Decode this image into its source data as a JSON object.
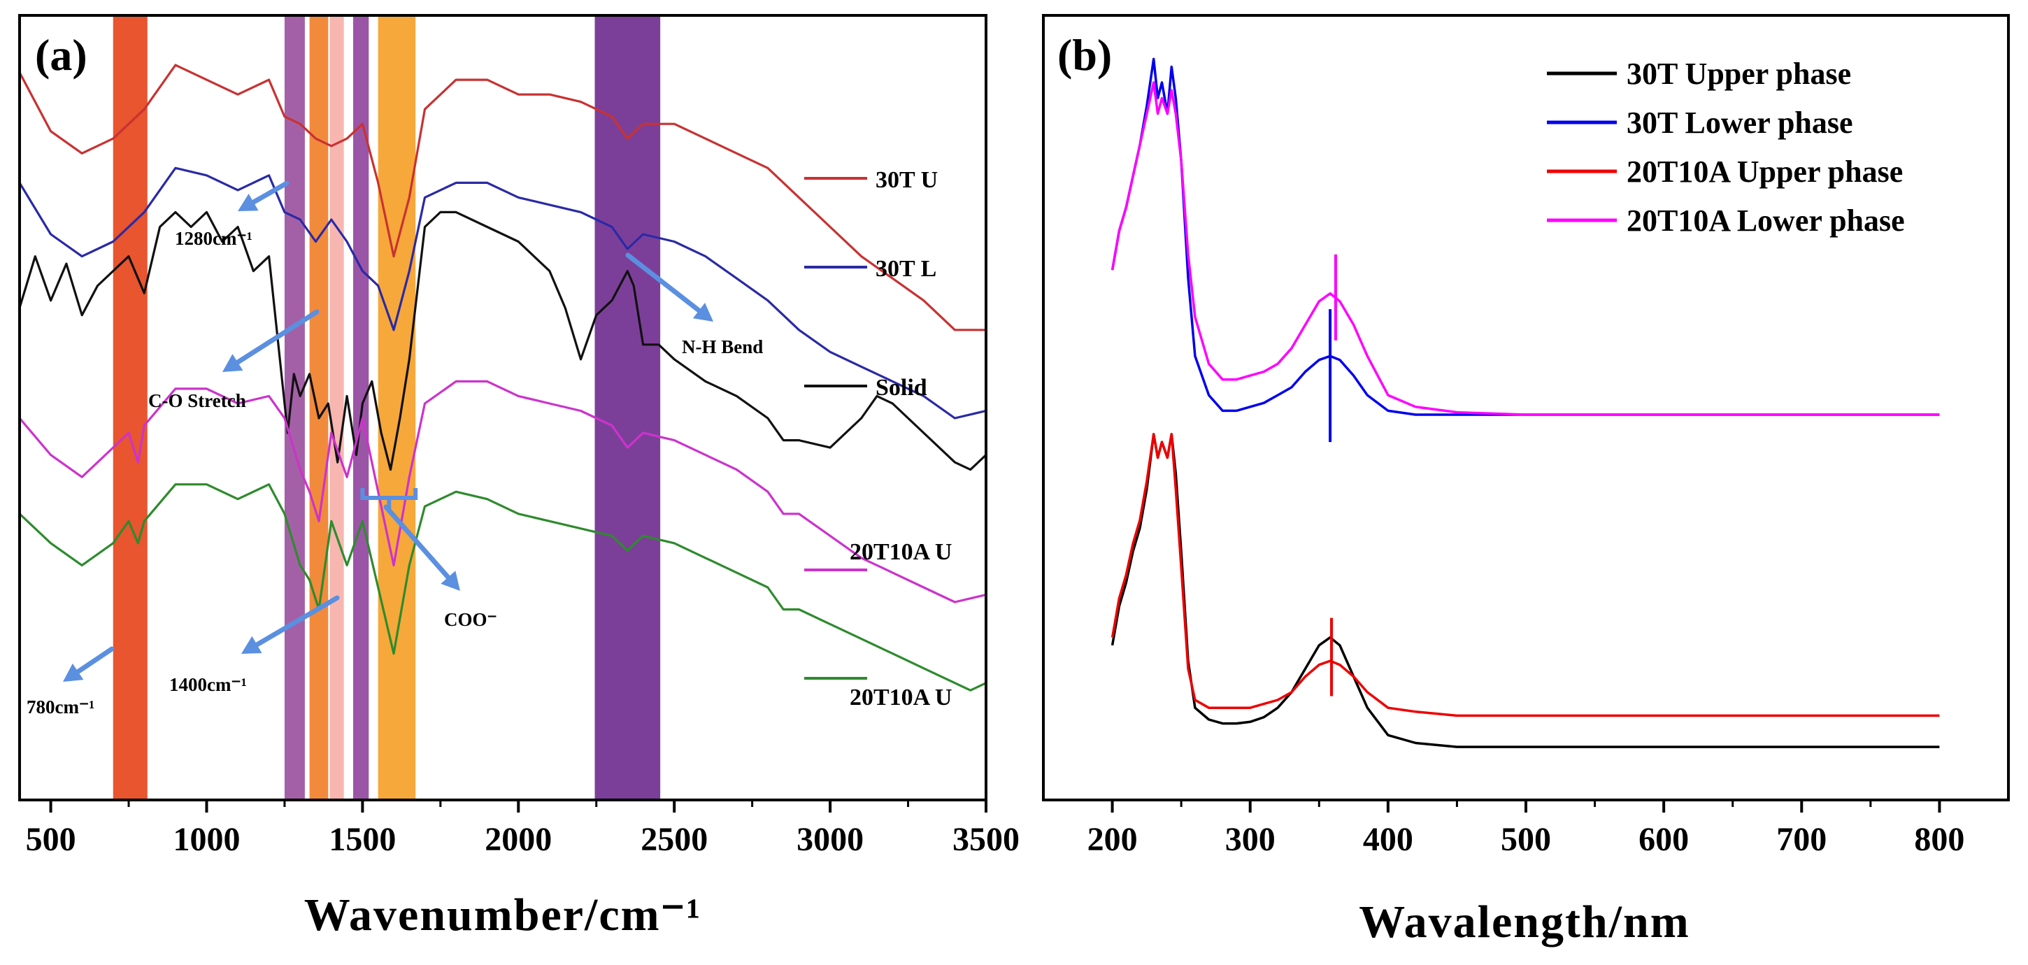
{
  "chart_data": [
    {
      "type": "line",
      "panel": "(a)",
      "xlabel": "Wavenumber/cm⁻¹",
      "ylabel": "",
      "xlim": [
        400,
        3500
      ],
      "x_ticks": [
        500,
        1000,
        1500,
        2000,
        2500,
        3000,
        3500
      ],
      "x_tick_labels": [
        "500",
        "1000",
        "1500",
        "2000",
        "2500",
        "3000",
        "3500"
      ],
      "y_ticks_shown": false,
      "bands": [
        {
          "from": 700,
          "to": 810,
          "color": "#e8552e"
        },
        {
          "from": 1250,
          "to": 1315,
          "color": "#a460a6"
        },
        {
          "from": 1330,
          "to": 1390,
          "color": "#f28a3c"
        },
        {
          "from": 1395,
          "to": 1440,
          "color": "#f7b6b0"
        },
        {
          "from": 1470,
          "to": 1520,
          "color": "#9b55a6"
        },
        {
          "from": 1550,
          "to": 1670,
          "color": "#f7a83a"
        },
        {
          "from": 2245,
          "to": 2455,
          "color": "#7c3f99"
        }
      ],
      "annotations": [
        {
          "text": "1280cm⁻¹"
        },
        {
          "text": "C-O Stretch"
        },
        {
          "text": "N-H Bend"
        },
        {
          "text": "COO⁻"
        },
        {
          "text": "780cm⁻¹"
        },
        {
          "text": "1400cm⁻¹"
        }
      ],
      "series": [
        {
          "name": "30T U",
          "color": "#c83232",
          "offset": 0.0,
          "x": [
            400,
            500,
            600,
            700,
            800,
            900,
            1000,
            1100,
            1200,
            1250,
            1300,
            1350,
            1400,
            1450,
            1500,
            1550,
            1600,
            1650,
            1700,
            1800,
            1900,
            2000,
            2100,
            2200,
            2300,
            2350,
            2400,
            2500,
            2600,
            2700,
            2800,
            2900,
            3000,
            3100,
            3200,
            3300,
            3400,
            3500
          ],
          "y": [
            0.97,
            0.89,
            0.86,
            0.88,
            0.92,
            0.98,
            0.96,
            0.94,
            0.96,
            0.91,
            0.9,
            0.88,
            0.87,
            0.88,
            0.9,
            0.82,
            0.72,
            0.8,
            0.92,
            0.96,
            0.96,
            0.94,
            0.94,
            0.93,
            0.91,
            0.88,
            0.9,
            0.9,
            0.88,
            0.86,
            0.84,
            0.8,
            0.76,
            0.72,
            0.69,
            0.66,
            0.62,
            0.62
          ]
        },
        {
          "name": "30T L",
          "color": "#2a2aa6",
          "offset": 0.0,
          "x": [
            400,
            500,
            600,
            700,
            800,
            900,
            1000,
            1100,
            1200,
            1250,
            1300,
            1350,
            1400,
            1450,
            1500,
            1550,
            1600,
            1650,
            1700,
            1800,
            1900,
            2000,
            2100,
            2200,
            2300,
            2350,
            2400,
            2500,
            2600,
            2700,
            2800,
            2900,
            3000,
            3100,
            3200,
            3300,
            3400,
            3500
          ],
          "y": [
            0.82,
            0.75,
            0.72,
            0.74,
            0.78,
            0.84,
            0.83,
            0.81,
            0.83,
            0.78,
            0.77,
            0.74,
            0.77,
            0.74,
            0.7,
            0.68,
            0.62,
            0.7,
            0.8,
            0.82,
            0.82,
            0.8,
            0.79,
            0.78,
            0.76,
            0.73,
            0.75,
            0.74,
            0.72,
            0.69,
            0.66,
            0.62,
            0.59,
            0.57,
            0.55,
            0.53,
            0.5,
            0.51
          ]
        },
        {
          "name": "Solid",
          "color": "#111111",
          "offset": 0.0,
          "x": [
            400,
            450,
            500,
            550,
            600,
            650,
            700,
            750,
            800,
            850,
            900,
            950,
            1000,
            1050,
            1100,
            1150,
            1200,
            1230,
            1260,
            1280,
            1300,
            1330,
            1360,
            1390,
            1420,
            1450,
            1480,
            1500,
            1530,
            1560,
            1590,
            1620,
            1650,
            1700,
            1750,
            1800,
            1900,
            2000,
            2100,
            2150,
            2200,
            2250,
            2300,
            2350,
            2370,
            2400,
            2450,
            2500,
            2600,
            2700,
            2800,
            2850,
            2900,
            3000,
            3100,
            3150,
            3200,
            3300,
            3400,
            3450,
            3500
          ],
          "y": [
            0.65,
            0.72,
            0.66,
            0.71,
            0.64,
            0.68,
            0.7,
            0.72,
            0.67,
            0.76,
            0.78,
            0.76,
            0.78,
            0.74,
            0.76,
            0.7,
            0.72,
            0.6,
            0.48,
            0.56,
            0.53,
            0.56,
            0.5,
            0.52,
            0.44,
            0.53,
            0.45,
            0.52,
            0.55,
            0.48,
            0.43,
            0.5,
            0.58,
            0.76,
            0.78,
            0.78,
            0.76,
            0.74,
            0.7,
            0.65,
            0.58,
            0.64,
            0.66,
            0.7,
            0.68,
            0.6,
            0.6,
            0.58,
            0.55,
            0.53,
            0.5,
            0.47,
            0.47,
            0.46,
            0.5,
            0.53,
            0.52,
            0.48,
            0.44,
            0.43,
            0.45
          ]
        },
        {
          "name": "20T10A U",
          "color": "#cc33cc",
          "offset": 0.0,
          "x": [
            400,
            500,
            600,
            700,
            750,
            780,
            800,
            900,
            1000,
            1100,
            1200,
            1250,
            1300,
            1330,
            1360,
            1400,
            1450,
            1500,
            1550,
            1600,
            1650,
            1700,
            1800,
            1900,
            2000,
            2100,
            2200,
            2300,
            2350,
            2400,
            2500,
            2600,
            2700,
            2800,
            2850,
            2900,
            3000,
            3100,
            3200,
            3300,
            3400,
            3500
          ],
          "y": [
            0.5,
            0.45,
            0.42,
            0.46,
            0.48,
            0.44,
            0.49,
            0.54,
            0.54,
            0.52,
            0.53,
            0.5,
            0.43,
            0.4,
            0.36,
            0.48,
            0.42,
            0.5,
            0.4,
            0.3,
            0.42,
            0.52,
            0.55,
            0.55,
            0.53,
            0.52,
            0.51,
            0.49,
            0.46,
            0.48,
            0.47,
            0.45,
            0.43,
            0.4,
            0.37,
            0.37,
            0.34,
            0.31,
            0.29,
            0.27,
            0.25,
            0.26
          ]
        },
        {
          "name": "20T10A U",
          "color": "#2e8b2e",
          "offset": 0.0,
          "x": [
            400,
            500,
            600,
            700,
            750,
            780,
            800,
            900,
            1000,
            1100,
            1200,
            1250,
            1300,
            1330,
            1360,
            1400,
            1450,
            1500,
            1550,
            1600,
            1650,
            1700,
            1800,
            1900,
            2000,
            2100,
            2200,
            2300,
            2350,
            2400,
            2500,
            2600,
            2700,
            2800,
            2850,
            2900,
            3000,
            3100,
            3200,
            3300,
            3400,
            3450,
            3500
          ],
          "y": [
            0.37,
            0.33,
            0.3,
            0.33,
            0.36,
            0.33,
            0.36,
            0.41,
            0.41,
            0.39,
            0.41,
            0.37,
            0.3,
            0.28,
            0.24,
            0.36,
            0.3,
            0.36,
            0.27,
            0.18,
            0.3,
            0.38,
            0.4,
            0.39,
            0.37,
            0.36,
            0.35,
            0.34,
            0.32,
            0.34,
            0.33,
            0.31,
            0.29,
            0.27,
            0.24,
            0.24,
            0.22,
            0.2,
            0.18,
            0.16,
            0.14,
            0.13,
            0.14
          ]
        }
      ]
    },
    {
      "type": "line",
      "panel": "(b)",
      "xlabel": "Wavalength/nm",
      "ylabel": "",
      "xlim": [
        150,
        850
      ],
      "x_ticks": [
        200,
        300,
        400,
        500,
        600,
        700,
        800
      ],
      "x_tick_labels": [
        "200",
        "300",
        "400",
        "500",
        "600",
        "700",
        "800"
      ],
      "y_ticks_shown": false,
      "legend_position": "top-right",
      "series": [
        {
          "name": "30T Upper phase",
          "color": "#000000",
          "x": [
            200,
            205,
            210,
            215,
            220,
            225,
            230,
            233,
            236,
            240,
            243,
            246,
            250,
            255,
            260,
            270,
            280,
            290,
            300,
            310,
            320,
            330,
            340,
            350,
            358,
            365,
            375,
            385,
            400,
            420,
            450,
            500,
            600,
            700,
            800
          ],
          "y": [
            0.18,
            0.23,
            0.26,
            0.3,
            0.33,
            0.38,
            0.45,
            0.42,
            0.44,
            0.42,
            0.45,
            0.4,
            0.3,
            0.16,
            0.1,
            0.085,
            0.08,
            0.08,
            0.082,
            0.088,
            0.1,
            0.12,
            0.15,
            0.18,
            0.19,
            0.18,
            0.14,
            0.1,
            0.065,
            0.055,
            0.05,
            0.05,
            0.05,
            0.05,
            0.05
          ]
        },
        {
          "name": "30T Lower phase",
          "color": "#0000ee",
          "x": [
            200,
            205,
            210,
            215,
            220,
            225,
            230,
            233,
            236,
            240,
            243,
            246,
            250,
            255,
            260,
            270,
            280,
            290,
            300,
            310,
            320,
            330,
            340,
            350,
            358,
            365,
            375,
            385,
            400,
            420,
            450,
            500,
            600,
            700,
            800
          ],
          "y": [
            0.66,
            0.71,
            0.74,
            0.78,
            0.82,
            0.87,
            0.93,
            0.88,
            0.9,
            0.86,
            0.92,
            0.88,
            0.8,
            0.65,
            0.55,
            0.5,
            0.48,
            0.48,
            0.485,
            0.49,
            0.5,
            0.51,
            0.53,
            0.545,
            0.55,
            0.545,
            0.525,
            0.5,
            0.48,
            0.475,
            0.475,
            0.475,
            0.475,
            0.475,
            0.475
          ]
        },
        {
          "name": "20T10A Upper phase",
          "color": "#ee0000",
          "x": [
            200,
            205,
            210,
            215,
            220,
            225,
            230,
            233,
            236,
            240,
            243,
            246,
            250,
            255,
            260,
            270,
            280,
            290,
            300,
            310,
            320,
            330,
            340,
            350,
            358,
            365,
            375,
            385,
            400,
            420,
            450,
            500,
            600,
            700,
            800
          ],
          "y": [
            0.19,
            0.24,
            0.27,
            0.31,
            0.34,
            0.39,
            0.45,
            0.42,
            0.44,
            0.42,
            0.45,
            0.38,
            0.28,
            0.15,
            0.11,
            0.1,
            0.1,
            0.1,
            0.1,
            0.105,
            0.11,
            0.12,
            0.14,
            0.155,
            0.16,
            0.155,
            0.14,
            0.12,
            0.1,
            0.095,
            0.09,
            0.09,
            0.09,
            0.09,
            0.09
          ]
        },
        {
          "name": "20T10A Lower phase",
          "color": "#ff00ff",
          "x": [
            200,
            205,
            210,
            215,
            220,
            225,
            230,
            233,
            236,
            240,
            243,
            246,
            250,
            255,
            260,
            270,
            280,
            290,
            300,
            310,
            320,
            330,
            340,
            350,
            358,
            365,
            375,
            385,
            400,
            420,
            450,
            500,
            600,
            700,
            800
          ],
          "y": [
            0.66,
            0.71,
            0.74,
            0.78,
            0.82,
            0.86,
            0.9,
            0.86,
            0.88,
            0.86,
            0.89,
            0.86,
            0.8,
            0.68,
            0.6,
            0.54,
            0.52,
            0.52,
            0.525,
            0.53,
            0.54,
            0.56,
            0.59,
            0.62,
            0.63,
            0.62,
            0.59,
            0.55,
            0.5,
            0.485,
            0.478,
            0.475,
            0.475,
            0.475,
            0.475
          ]
        }
      ]
    }
  ]
}
